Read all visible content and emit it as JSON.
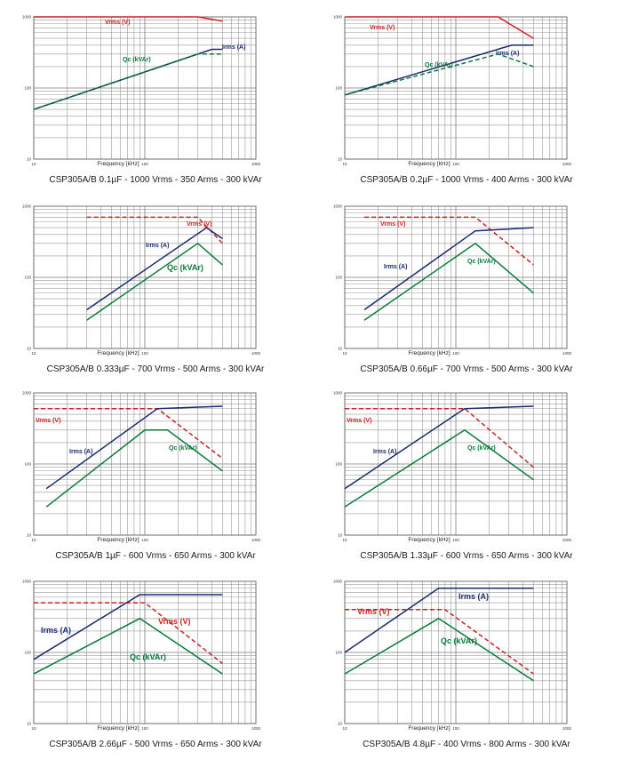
{
  "chart_data": [
    {
      "type": "line",
      "caption": "CSP305A/B 0.1µF - 1000 Vrms - 350 Arms - 300 kVAr",
      "xlabel": "Frequency [kHz]",
      "xscale": "log",
      "yscale": "log",
      "xlim": [
        10,
        1000
      ],
      "ylim": [
        10,
        1000
      ],
      "x_ticks": [
        "10",
        "100",
        "1000"
      ],
      "y_ticks": [
        "1000",
        "100",
        "10"
      ],
      "colors": {
        "vrms": "#cc2222",
        "irms": "#1a2a6e",
        "qc": "#0a7a3a"
      },
      "series": [
        {
          "name": "Vrms (V)",
          "label": "Vrms (V)",
          "style": "solid",
          "color_key": "vrms",
          "x": [
            10,
            300,
            500
          ],
          "y": [
            1000,
            1000,
            870
          ]
        },
        {
          "name": "Irms (A)",
          "label": "Irms (A)",
          "style": "solid",
          "color_key": "irms",
          "x": [
            10,
            400,
            500
          ],
          "y": [
            50,
            350,
            350
          ]
        },
        {
          "name": "Qc (kVAr)",
          "label": "Qc (kVAr)",
          "style": "dashed",
          "color_key": "qc",
          "x": [
            10,
            300,
            500
          ],
          "y": [
            50,
            300,
            300
          ]
        }
      ]
    },
    {
      "type": "line",
      "caption": "CSP305A/B 0.2µF - 1000 Vrms - 400 Arms - 300 kVAr",
      "xlabel": "Frequency [kHz]",
      "xscale": "log",
      "yscale": "log",
      "xlim": [
        10,
        1000
      ],
      "ylim": [
        10,
        1000
      ],
      "x_ticks": [
        "10",
        "100",
        "1000"
      ],
      "y_ticks": [
        "1000",
        "100",
        "10"
      ],
      "colors": {
        "vrms": "#cc2222",
        "irms": "#1a2a6e",
        "qc": "#0a7a3a"
      },
      "series": [
        {
          "name": "Vrms (V)",
          "label": "Vrms (V)",
          "style": "solid",
          "color_key": "vrms",
          "x": [
            10,
            240,
            500
          ],
          "y": [
            1000,
            1000,
            500
          ]
        },
        {
          "name": "Irms (A)",
          "label": "Irms (A)",
          "style": "solid",
          "color_key": "irms",
          "x": [
            10,
            320,
            500
          ],
          "y": [
            80,
            400,
            400
          ]
        },
        {
          "name": "Qc (kVAr)",
          "label": "Qc (kVAr)",
          "style": "dashed",
          "color_key": "qc",
          "x": [
            10,
            240,
            500
          ],
          "y": [
            80,
            300,
            200
          ]
        }
      ]
    },
    {
      "type": "line",
      "caption": "CSP305A/B 0.333µF - 700 Vrms - 500 Arms - 300 kVAr",
      "xlabel": "Frequency [kHz]",
      "xscale": "log",
      "yscale": "log",
      "xlim": [
        10,
        1000
      ],
      "ylim": [
        10,
        1000
      ],
      "x_ticks": [
        "10",
        "100",
        "1000"
      ],
      "y_ticks": [
        "1000",
        "100",
        "10"
      ],
      "colors": {
        "vrms": "#cc2222",
        "irms": "#1a2a6e",
        "qc": "#0a7a3a"
      },
      "series": [
        {
          "name": "Vrms (V)",
          "label": "Vrms (V)",
          "style": "dashed",
          "color_key": "vrms",
          "x": [
            30,
            300,
            500
          ],
          "y": [
            700,
            700,
            300
          ]
        },
        {
          "name": "Irms (A)",
          "label": "Irms (A)",
          "style": "solid",
          "color_key": "irms",
          "x": [
            30,
            360,
            500
          ],
          "y": [
            35,
            500,
            350
          ]
        },
        {
          "name": "Qc (kVAr)",
          "label": "Qc (kVAr)",
          "style": "solid",
          "color_key": "qc",
          "x": [
            30,
            300,
            500
          ],
          "y": [
            25,
            300,
            150
          ]
        }
      ]
    },
    {
      "type": "line",
      "caption": "CSP305A/B 0.66µF - 700 Vrms - 500 Arms - 300 kVAr",
      "xlabel": "Frequency [kHz]",
      "xscale": "log",
      "yscale": "log",
      "xlim": [
        10,
        1000
      ],
      "ylim": [
        10,
        1000
      ],
      "x_ticks": [
        "10",
        "100",
        "1000"
      ],
      "y_ticks": [
        "1000",
        "100",
        "10"
      ],
      "colors": {
        "vrms": "#cc2222",
        "irms": "#1a2a6e",
        "qc": "#0a7a3a"
      },
      "series": [
        {
          "name": "Vrms (V)",
          "label": "Vrms (V)",
          "style": "dashed",
          "color_key": "vrms",
          "x": [
            15,
            150,
            500
          ],
          "y": [
            700,
            700,
            150
          ]
        },
        {
          "name": "Irms (A)",
          "label": "Irms (A)",
          "style": "solid",
          "color_key": "irms",
          "x": [
            15,
            150,
            500
          ],
          "y": [
            35,
            450,
            500
          ]
        },
        {
          "name": "Qc (kVAr)",
          "label": "Qc (kVAr)",
          "style": "solid",
          "color_key": "qc",
          "x": [
            15,
            150,
            500
          ],
          "y": [
            25,
            300,
            60
          ]
        }
      ]
    },
    {
      "type": "line",
      "caption": "CSP305A/B 1µF - 600 Vrms - 650 Arms - 300 kVAr",
      "xlabel": "Frequency [kHz]",
      "xscale": "log",
      "yscale": "log",
      "xlim": [
        10,
        1000
      ],
      "ylim": [
        10,
        1000
      ],
      "x_ticks": [
        "10",
        "100",
        "1000"
      ],
      "y_ticks": [
        "1000",
        "100",
        "10"
      ],
      "colors": {
        "vrms": "#cc2222",
        "irms": "#1a2a6e",
        "qc": "#0a7a3a"
      },
      "series": [
        {
          "name": "Vrms (V)",
          "label": "Vrms (V)",
          "style": "dashed",
          "color_key": "vrms",
          "x": [
            10,
            130,
            500
          ],
          "y": [
            600,
            600,
            120
          ]
        },
        {
          "name": "Irms (A)",
          "label": "Irms (A)",
          "style": "solid",
          "color_key": "irms",
          "x": [
            13,
            130,
            500
          ],
          "y": [
            45,
            600,
            650
          ]
        },
        {
          "name": "Qc (kVAr)",
          "label": "Qc (kVAr)",
          "style": "solid",
          "color_key": "qc",
          "x": [
            13,
            100,
            160,
            500
          ],
          "y": [
            25,
            300,
            300,
            80
          ]
        }
      ]
    },
    {
      "type": "line",
      "caption": "CSP305A/B 1.33µF - 600 Vrms - 650 Arms - 300 kVAr",
      "xlabel": "Frequency [kHz]",
      "xscale": "log",
      "yscale": "log",
      "xlim": [
        10,
        1000
      ],
      "ylim": [
        10,
        1000
      ],
      "x_ticks": [
        "10",
        "100",
        "1000"
      ],
      "y_ticks": [
        "1000",
        "100",
        "10"
      ],
      "colors": {
        "vrms": "#cc2222",
        "irms": "#1a2a6e",
        "qc": "#0a7a3a"
      },
      "series": [
        {
          "name": "Vrms (V)",
          "label": "Vrms (V)",
          "style": "dashed",
          "color_key": "vrms",
          "x": [
            10,
            120,
            500
          ],
          "y": [
            600,
            600,
            90
          ]
        },
        {
          "name": "Irms (A)",
          "label": "Irms (A)",
          "style": "solid",
          "color_key": "irms",
          "x": [
            10,
            120,
            500
          ],
          "y": [
            45,
            600,
            650
          ]
        },
        {
          "name": "Qc (kVAr)",
          "label": "Qc (kVAr)",
          "style": "solid",
          "color_key": "qc",
          "x": [
            10,
            120,
            500
          ],
          "y": [
            25,
            300,
            60
          ]
        }
      ]
    },
    {
      "type": "line",
      "caption": "CSP305A/B 2.66µF - 500 Vrms - 650 Arms - 300 kVAr",
      "xlabel": "Frequency [kHz]",
      "xscale": "log",
      "yscale": "log",
      "xlim": [
        10,
        1000
      ],
      "ylim": [
        10,
        1000
      ],
      "x_ticks": [
        "10",
        "100",
        "1000"
      ],
      "y_ticks": [
        "1000",
        "100",
        "10"
      ],
      "colors": {
        "vrms": "#cc2222",
        "irms": "#1a2a6e",
        "qc": "#0a7a3a"
      },
      "series": [
        {
          "name": "Vrms (V)",
          "label": "Vrms (V)",
          "style": "dashed",
          "color_key": "vrms",
          "x": [
            10,
            100,
            500
          ],
          "y": [
            500,
            500,
            70
          ]
        },
        {
          "name": "Irms (A)",
          "label": "Irms (A)",
          "style": "solid",
          "color_key": "irms",
          "x": [
            10,
            90,
            500
          ],
          "y": [
            80,
            650,
            650
          ]
        },
        {
          "name": "Qc (kVAr)",
          "label": "Qc (kVAr)",
          "style": "solid",
          "color_key": "qc",
          "x": [
            10,
            90,
            500
          ],
          "y": [
            50,
            300,
            50
          ]
        }
      ]
    },
    {
      "type": "line",
      "caption": "CSP305A/B 4.8µF - 400 Vrms - 800 Arms - 300 kVAr",
      "xlabel": "Frequency [kHz]",
      "xscale": "log",
      "yscale": "log",
      "xlim": [
        10,
        1000
      ],
      "ylim": [
        10,
        1000
      ],
      "x_ticks": [
        "10",
        "100",
        "1000"
      ],
      "y_ticks": [
        "1000",
        "100",
        "10"
      ],
      "colors": {
        "vrms": "#cc2222",
        "irms": "#1a2a6e",
        "qc": "#0a7a3a"
      },
      "series": [
        {
          "name": "Vrms (V)",
          "label": "Vrms (V)",
          "style": "dashed",
          "color_key": "vrms",
          "x": [
            10,
            80,
            500
          ],
          "y": [
            400,
            400,
            50
          ]
        },
        {
          "name": "Irms (A)",
          "label": "Irms (A)",
          "style": "solid",
          "color_key": "irms",
          "x": [
            10,
            70,
            500
          ],
          "y": [
            100,
            800,
            800
          ]
        },
        {
          "name": "Qc (kVAr)",
          "label": "Qc (kVAr)",
          "style": "solid",
          "color_key": "qc",
          "x": [
            10,
            70,
            500
          ],
          "y": [
            50,
            300,
            40
          ]
        }
      ]
    }
  ]
}
